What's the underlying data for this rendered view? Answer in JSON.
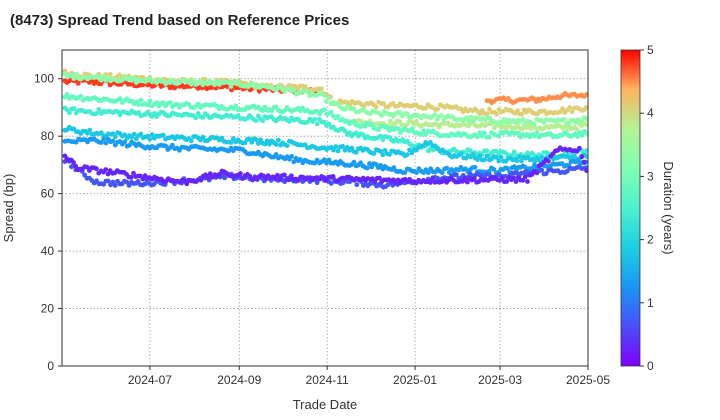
{
  "chart_data": {
    "type": "scatter",
    "title": "(8473)   Spread Trend based on Reference Prices",
    "xlabel": "Trade Date",
    "ylabel": "Spread (bp)",
    "x_range": [
      "2024-05-01",
      "2025-05-01"
    ],
    "y_range": [
      0,
      110
    ],
    "x_ticks": [
      "2024-07",
      "2024-09",
      "2024-11",
      "2025-01",
      "2025-03",
      "2025-05"
    ],
    "y_ticks": [
      0,
      20,
      40,
      60,
      80,
      100
    ],
    "grid": true,
    "colorbar": {
      "label": "Duration (years)",
      "range": [
        0,
        5
      ],
      "ticks": [
        0,
        1,
        2,
        3,
        4,
        5
      ],
      "colormap": "rainbow"
    },
    "series": [
      {
        "duration": 4.8,
        "points": [
          [
            "2024-05-03",
            99
          ],
          [
            "2024-05-20",
            99
          ],
          [
            "2024-06-05",
            98.5
          ],
          [
            "2024-06-25",
            98
          ],
          [
            "2024-07-15",
            97.5
          ],
          [
            "2024-08-05",
            97.5
          ],
          [
            "2024-08-25",
            97
          ],
          [
            "2024-09-15",
            96.5
          ],
          [
            "2024-10-05",
            96
          ],
          [
            "2024-10-25",
            95.5
          ]
        ]
      },
      {
        "duration": 4.5,
        "points": [
          [
            "2025-02-20",
            92.5
          ],
          [
            "2025-03-05",
            92.5
          ],
          [
            "2025-03-20",
            92.5
          ],
          [
            "2025-04-01",
            93
          ],
          [
            "2025-04-10",
            94
          ],
          [
            "2025-04-20",
            94
          ],
          [
            "2025-04-30",
            94.5
          ]
        ]
      },
      {
        "duration": 4.1,
        "points": [
          [
            "2024-05-03",
            102
          ],
          [
            "2024-05-20",
            101
          ],
          [
            "2024-06-10",
            100.5
          ],
          [
            "2024-07-01",
            100
          ],
          [
            "2024-07-20",
            99
          ],
          [
            "2024-08-10",
            99
          ],
          [
            "2024-09-01",
            98.5
          ],
          [
            "2024-09-20",
            97
          ],
          [
            "2024-10-10",
            97
          ],
          [
            "2024-10-28",
            96.5
          ],
          [
            "2024-11-05",
            92
          ],
          [
            "2024-11-20",
            91.5
          ],
          [
            "2024-12-05",
            91
          ],
          [
            "2024-12-20",
            90.5
          ],
          [
            "2025-01-05",
            90.5
          ],
          [
            "2025-01-20",
            90
          ],
          [
            "2025-02-05",
            89
          ],
          [
            "2025-02-20",
            88.5
          ],
          [
            "2025-03-10",
            88.5
          ],
          [
            "2025-03-30",
            88.5
          ],
          [
            "2025-04-15",
            89
          ],
          [
            "2025-04-30",
            90
          ]
        ]
      },
      {
        "duration": 3.8,
        "points": [
          [
            "2024-11-20",
            85
          ],
          [
            "2024-12-10",
            84.5
          ],
          [
            "2024-12-28",
            84.5
          ],
          [
            "2025-01-10",
            84
          ],
          [
            "2025-01-30",
            84
          ],
          [
            "2025-02-20",
            83.5
          ],
          [
            "2025-03-10",
            83.5
          ],
          [
            "2025-03-30",
            83
          ],
          [
            "2025-04-20",
            83
          ],
          [
            "2025-04-30",
            84
          ]
        ]
      },
      {
        "duration": 3.3,
        "points": [
          [
            "2024-05-03",
            101
          ],
          [
            "2024-05-25",
            100.5
          ],
          [
            "2024-06-20",
            99.5
          ],
          [
            "2024-07-15",
            99
          ],
          [
            "2024-08-10",
            98.5
          ],
          [
            "2024-09-05",
            98
          ],
          [
            "2024-09-25",
            97
          ],
          [
            "2024-10-15",
            95
          ],
          [
            "2024-10-28",
            94
          ],
          [
            "2024-11-10",
            90
          ],
          [
            "2024-12-01",
            88
          ],
          [
            "2024-12-20",
            87.5
          ],
          [
            "2025-01-10",
            87
          ],
          [
            "2025-02-01",
            86
          ],
          [
            "2025-02-25",
            85.5
          ],
          [
            "2025-03-20",
            85
          ],
          [
            "2025-04-10",
            85
          ],
          [
            "2025-04-30",
            86
          ]
        ]
      },
      {
        "duration": 2.8,
        "points": [
          [
            "2024-05-03",
            94
          ],
          [
            "2024-05-25",
            93
          ],
          [
            "2024-06-20",
            92
          ],
          [
            "2024-07-15",
            91
          ],
          [
            "2024-08-10",
            90.5
          ],
          [
            "2024-09-05",
            90
          ],
          [
            "2024-09-25",
            89.5
          ],
          [
            "2024-10-15",
            89
          ],
          [
            "2024-10-30",
            88.5
          ],
          [
            "2024-11-15",
            85
          ],
          [
            "2024-12-05",
            83
          ],
          [
            "2024-12-25",
            82
          ],
          [
            "2025-01-15",
            81
          ],
          [
            "2025-02-05",
            80.5
          ],
          [
            "2025-02-28",
            80.5
          ],
          [
            "2025-03-20",
            80.5
          ],
          [
            "2025-04-10",
            80
          ],
          [
            "2025-04-30",
            81
          ]
        ]
      },
      {
        "duration": 2.4,
        "points": [
          [
            "2024-05-03",
            89
          ],
          [
            "2024-05-25",
            88.5
          ],
          [
            "2024-06-20",
            88
          ],
          [
            "2024-07-15",
            87.5
          ],
          [
            "2024-08-10",
            87
          ],
          [
            "2024-09-05",
            86.5
          ],
          [
            "2024-09-25",
            86
          ],
          [
            "2024-10-15",
            85.5
          ],
          [
            "2024-10-30",
            85
          ],
          [
            "2024-11-15",
            81
          ],
          [
            "2024-12-05",
            79.5
          ],
          [
            "2024-12-25",
            78
          ],
          [
            "2025-01-15",
            75
          ],
          [
            "2025-02-05",
            74.5
          ],
          [
            "2025-02-28",
            74
          ],
          [
            "2025-03-20",
            73.5
          ],
          [
            "2025-04-10",
            73.5
          ],
          [
            "2025-04-30",
            75
          ]
        ]
      },
      {
        "duration": 1.8,
        "points": [
          [
            "2024-05-03",
            82.5
          ],
          [
            "2024-05-25",
            81
          ],
          [
            "2024-06-20",
            80
          ],
          [
            "2024-07-15",
            79.5
          ],
          [
            "2024-08-10",
            79
          ],
          [
            "2024-09-05",
            78.5
          ],
          [
            "2024-09-25",
            78
          ],
          [
            "2024-10-15",
            77
          ],
          [
            "2024-10-30",
            76
          ],
          [
            "2024-11-15",
            75.5
          ],
          [
            "2024-12-05",
            74.5
          ],
          [
            "2024-12-25",
            73.5
          ],
          [
            "2025-01-10",
            78
          ],
          [
            "2025-01-25",
            73.5
          ],
          [
            "2025-02-15",
            72.5
          ],
          [
            "2025-03-05",
            72
          ],
          [
            "2025-03-25",
            72
          ],
          [
            "2025-04-15",
            72.5
          ],
          [
            "2025-04-30",
            73
          ]
        ]
      },
      {
        "duration": 1.3,
        "points": [
          [
            "2024-05-03",
            78
          ],
          [
            "2024-05-25",
            78.5
          ],
          [
            "2024-06-20",
            77
          ],
          [
            "2024-07-15",
            76
          ],
          [
            "2024-08-10",
            75.5
          ],
          [
            "2024-09-05",
            75
          ],
          [
            "2024-09-25",
            73
          ],
          [
            "2024-10-15",
            71.5
          ],
          [
            "2024-10-30",
            71
          ],
          [
            "2024-11-15",
            70.5
          ],
          [
            "2024-12-05",
            69.5
          ],
          [
            "2024-12-25",
            68
          ],
          [
            "2025-01-15",
            68
          ],
          [
            "2025-02-05",
            68.5
          ],
          [
            "2025-02-28",
            68
          ],
          [
            "2025-03-20",
            69
          ],
          [
            "2025-04-10",
            70
          ],
          [
            "2025-04-30",
            71
          ]
        ]
      },
      {
        "duration": 0.7,
        "points": [
          [
            "2024-05-03",
            72
          ],
          [
            "2024-05-15",
            67
          ],
          [
            "2024-05-25",
            64
          ],
          [
            "2024-06-15",
            63.5
          ],
          [
            "2024-07-10",
            64
          ],
          [
            "2024-08-05",
            65
          ],
          [
            "2024-08-25",
            66
          ],
          [
            "2024-09-20",
            65
          ],
          [
            "2024-10-15",
            65
          ],
          [
            "2024-10-30",
            64.5
          ],
          [
            "2024-11-20",
            64
          ],
          [
            "2024-12-10",
            63
          ],
          [
            "2024-12-28",
            64
          ],
          [
            "2025-01-15",
            65.5
          ],
          [
            "2025-02-10",
            66
          ],
          [
            "2025-03-05",
            66
          ],
          [
            "2025-03-25",
            67.5
          ],
          [
            "2025-04-15",
            68
          ],
          [
            "2025-04-30",
            69
          ]
        ]
      },
      {
        "duration": 0.3,
        "points": [
          [
            "2024-05-03",
            73
          ],
          [
            "2024-05-12",
            69
          ],
          [
            "2024-07-25",
            64
          ],
          [
            "2024-08-20",
            67
          ],
          [
            "2024-09-05",
            66
          ],
          [
            "2024-12-25",
            64.5
          ],
          [
            "2025-03-20",
            65
          ],
          [
            "2025-04-10",
            75
          ],
          [
            "2025-04-25",
            75.5
          ],
          [
            "2025-04-30",
            68
          ]
        ]
      }
    ]
  }
}
